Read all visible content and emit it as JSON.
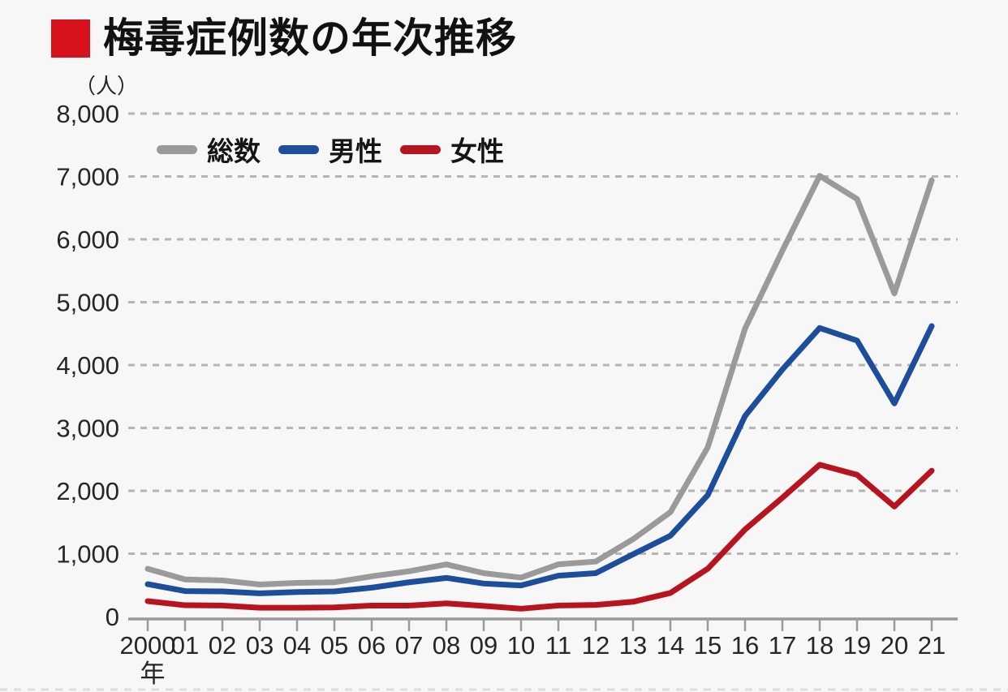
{
  "page": {
    "background_color": "#f7f7f7"
  },
  "header": {
    "title": "梅毒症例数の年次推移",
    "bullet_color": "#d8121c"
  },
  "chart": {
    "unit_label": "（人）",
    "x_axis_era_label": "年"
  },
  "chart_data": {
    "type": "line",
    "title": "梅毒症例数の年次推移",
    "ylabel": "（人）",
    "x_tick_labels": [
      "2000",
      "01",
      "02",
      "03",
      "04",
      "05",
      "06",
      "07",
      "08",
      "09",
      "10",
      "11",
      "12",
      "13",
      "14",
      "15",
      "16",
      "17",
      "18",
      "19",
      "20",
      "21"
    ],
    "x_axis_suffix": "年",
    "y_ticks": [
      0,
      1000,
      2000,
      3000,
      4000,
      5000,
      6000,
      7000,
      8000
    ],
    "y_tick_labels": [
      "0",
      "1,000",
      "2,000",
      "3,000",
      "4,000",
      "5,000",
      "6,000",
      "7,000",
      "8,000"
    ],
    "ylim": [
      0,
      8000
    ],
    "grid": "horizontal-dashed",
    "legend_position": "top-left-inside",
    "series": [
      {
        "name": "総数",
        "color": "#9a9a9a",
        "values": [
          760,
          590,
          575,
          510,
          535,
          545,
          640,
          720,
          830,
          690,
          620,
          830,
          875,
          1230,
          1660,
          2690,
          4580,
          5820,
          7010,
          6640,
          5140,
          6940
        ]
      },
      {
        "name": "男性",
        "color": "#1d4e9b",
        "values": [
          515,
          405,
          400,
          370,
          390,
          400,
          460,
          545,
          615,
          525,
          495,
          650,
          690,
          990,
          1285,
          1930,
          3190,
          3930,
          4590,
          4390,
          3390,
          4620
        ]
      },
      {
        "name": "女性",
        "color": "#b8141f",
        "values": [
          245,
          180,
          175,
          140,
          140,
          145,
          175,
          175,
          210,
          170,
          125,
          175,
          185,
          235,
          375,
          760,
          1385,
          1890,
          2415,
          2255,
          1750,
          2320
        ]
      }
    ]
  }
}
